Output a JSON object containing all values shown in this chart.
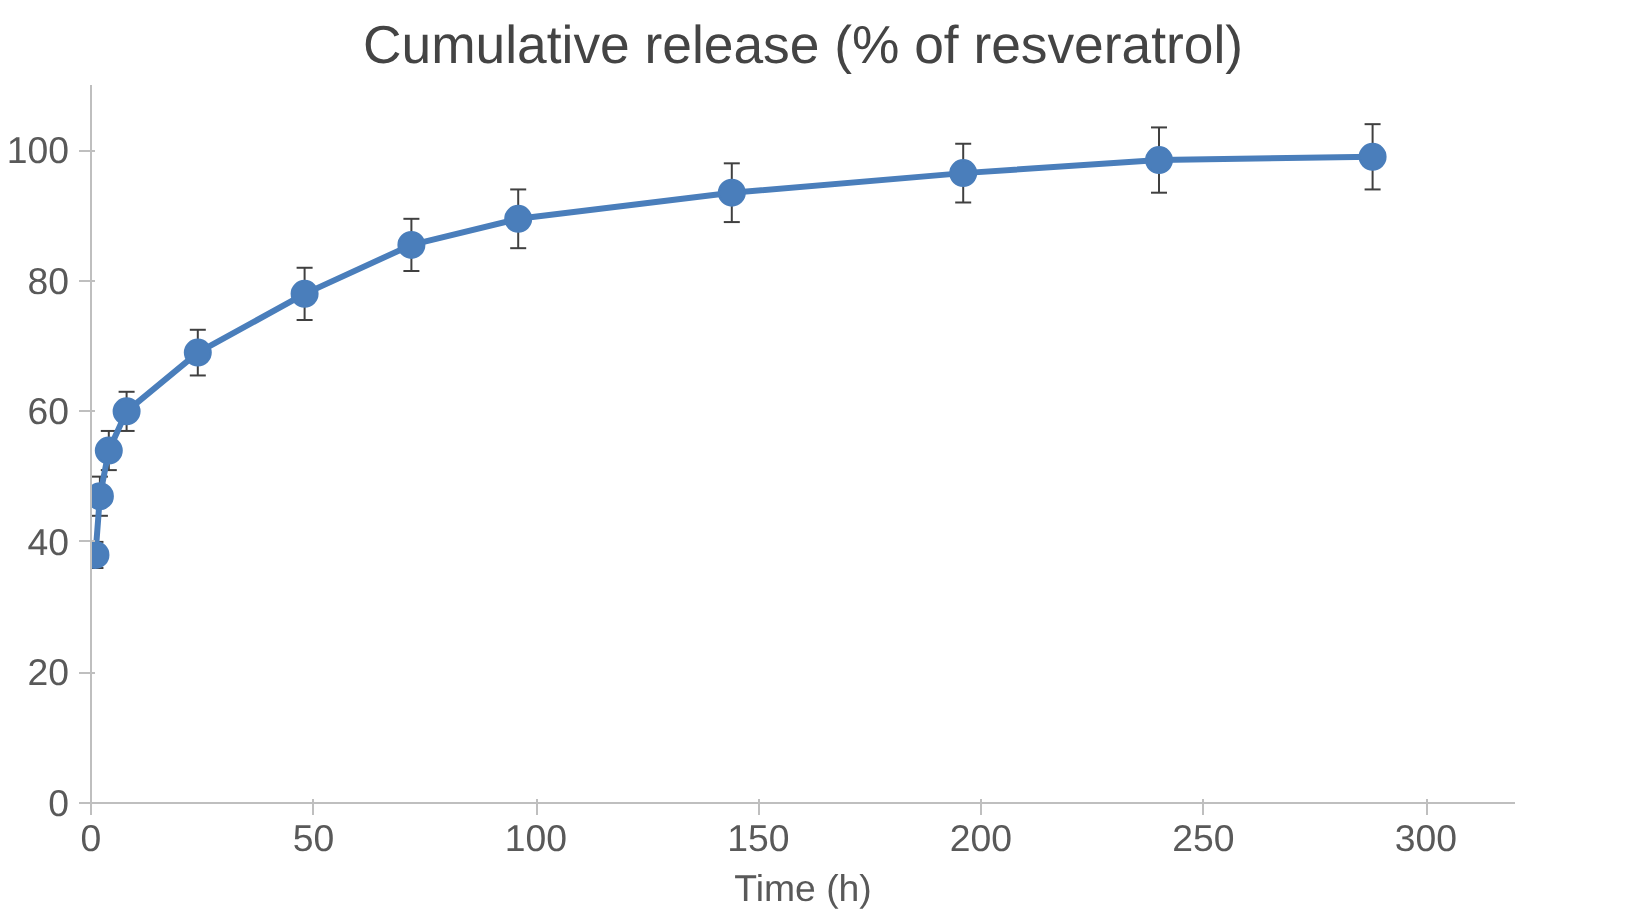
{
  "chart_data": {
    "type": "line",
    "title": "Cumulative release (% of resveratrol)",
    "xlabel": "Time (h)",
    "x": [
      1,
      2,
      4,
      8,
      24,
      48,
      72,
      96,
      144,
      196,
      240,
      288
    ],
    "series": [
      {
        "color": "#4a7ebb",
        "values": [
          38,
          47,
          54,
          60,
          69,
          78,
          85.5,
          89.5,
          93.5,
          96.5,
          98.5,
          99
        ],
        "errors": [
          2,
          3,
          3,
          3,
          3.5,
          4,
          4,
          4.5,
          4.5,
          4.5,
          5,
          5
        ]
      }
    ],
    "xlim": [
      0,
      320
    ],
    "xticks": [
      0,
      50,
      100,
      150,
      200,
      250,
      300
    ],
    "ylim": [
      0,
      110
    ],
    "yticks": [
      0,
      20,
      40,
      60,
      80,
      100
    ],
    "grid": false,
    "marker": "circle",
    "line_style": "solid"
  }
}
